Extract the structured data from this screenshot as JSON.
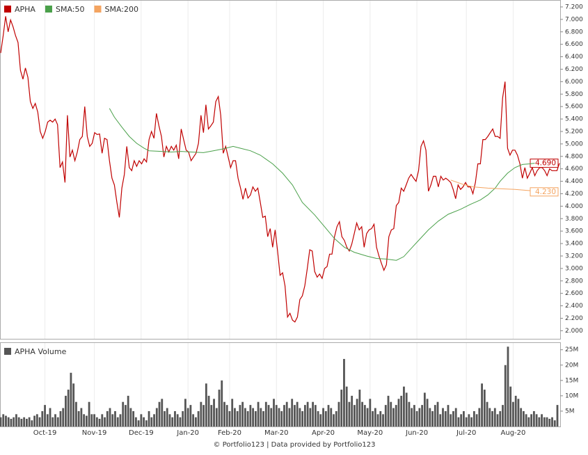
{
  "chart_data": [
    {
      "type": "line",
      "series": [
        {
          "name": "APHA",
          "color": "#c00000",
          "end_label": "4.690",
          "values": [
            6.46,
            6.74,
            7.05,
            6.8,
            6.99,
            6.88,
            6.74,
            6.63,
            6.18,
            6.04,
            6.22,
            6.07,
            5.68,
            5.57,
            5.65,
            5.51,
            5.2,
            5.09,
            5.2,
            5.35,
            5.38,
            5.35,
            5.4,
            5.31,
            4.62,
            4.71,
            4.38,
            5.46,
            4.79,
            4.9,
            4.73,
            4.87,
            5.07,
            5.12,
            5.6,
            5.12,
            4.96,
            5.01,
            5.18,
            5.15,
            5.16,
            4.85,
            5.09,
            5.07,
            4.73,
            4.45,
            4.34,
            4.06,
            3.82,
            4.29,
            4.51,
            4.96,
            4.62,
            4.57,
            4.73,
            4.64,
            4.73,
            4.68,
            4.76,
            4.71,
            5.07,
            5.2,
            5.09,
            5.49,
            5.29,
            5.12,
            4.79,
            4.96,
            4.87,
            4.96,
            4.9,
            4.98,
            4.76,
            5.24,
            5.07,
            4.9,
            4.87,
            4.73,
            4.79,
            4.85,
            5.01,
            5.46,
            5.18,
            5.63,
            5.24,
            5.29,
            5.35,
            5.68,
            5.76,
            5.46,
            4.85,
            4.96,
            4.79,
            4.62,
            4.73,
            4.73,
            4.45,
            4.29,
            4.11,
            4.29,
            4.13,
            4.18,
            4.31,
            4.24,
            4.29,
            4.06,
            3.82,
            3.84,
            3.51,
            3.64,
            3.34,
            3.62,
            3.28,
            2.89,
            2.93,
            2.72,
            2.22,
            2.28,
            2.17,
            2.14,
            2.22,
            2.5,
            2.56,
            2.72,
            3.0,
            3.3,
            3.28,
            2.95,
            2.86,
            2.91,
            2.84,
            3.0,
            3.03,
            3.23,
            3.23,
            3.51,
            3.67,
            3.75,
            3.51,
            3.45,
            3.34,
            3.28,
            3.39,
            3.56,
            3.73,
            3.62,
            3.67,
            3.34,
            3.56,
            3.62,
            3.64,
            3.71,
            3.34,
            3.2,
            3.08,
            2.97,
            3.06,
            3.51,
            3.62,
            3.64,
            4.01,
            4.06,
            4.29,
            4.24,
            4.34,
            4.45,
            4.51,
            4.45,
            4.4,
            4.57,
            4.96,
            5.05,
            4.9,
            4.24,
            4.34,
            4.48,
            4.48,
            4.31,
            4.48,
            4.42,
            4.45,
            4.42,
            4.38,
            4.27,
            4.12,
            4.34,
            4.27,
            4.31,
            4.38,
            4.31,
            4.31,
            4.2,
            4.38,
            4.68,
            4.68,
            5.07,
            5.07,
            5.12,
            5.18,
            5.24,
            5.12,
            5.12,
            5.09,
            5.74,
            6.0,
            4.93,
            4.82,
            4.9,
            4.9,
            4.82,
            4.68,
            4.45,
            4.62,
            4.45,
            4.53,
            4.62,
            4.49,
            4.57,
            4.62,
            4.62,
            4.57,
            4.49,
            4.6,
            4.57,
            4.57,
            4.57,
            4.69
          ]
        },
        {
          "name": "SMA:50",
          "color": "#4aa04a",
          "x": [
            44,
            46,
            49,
            52,
            55,
            58,
            60,
            65,
            69,
            73,
            77,
            82,
            86,
            90,
            94,
            97,
            101,
            105,
            110,
            114,
            118,
            122,
            127,
            131,
            135,
            139,
            143,
            148,
            152,
            156,
            160,
            163,
            166,
            169,
            173,
            177,
            181,
            186,
            190,
            194,
            197,
            200,
            202,
            205,
            208,
            211,
            214,
            216
          ],
          "values": [
            5.57,
            5.43,
            5.27,
            5.12,
            5.01,
            4.93,
            4.89,
            4.88,
            4.87,
            4.88,
            4.87,
            4.86,
            4.89,
            4.92,
            4.96,
            4.93,
            4.89,
            4.82,
            4.68,
            4.53,
            4.34,
            4.06,
            3.86,
            3.67,
            3.48,
            3.34,
            3.26,
            3.2,
            3.16,
            3.15,
            3.13,
            3.19,
            3.32,
            3.45,
            3.62,
            3.76,
            3.87,
            3.95,
            4.03,
            4.1,
            4.18,
            4.29,
            4.4,
            4.53,
            4.62,
            4.67,
            4.68,
            4.69
          ]
        },
        {
          "name": "SMA:200",
          "color": "#f4a460",
          "end_label": "4.230",
          "x": [
            182,
            187,
            191,
            197,
            202,
            208,
            214,
            216
          ],
          "values": [
            4.42,
            4.35,
            4.31,
            4.29,
            4.28,
            4.27,
            4.25,
            4.23
          ]
        }
      ],
      "xlim": [
        0,
        226
      ],
      "ylim": [
        1.87,
        7.3
      ],
      "yticks": [
        {
          "value": 2.0,
          "label": "2.000"
        },
        {
          "value": 2.2,
          "label": "2.200"
        },
        {
          "value": 2.4,
          "label": "2.400"
        },
        {
          "value": 2.6,
          "label": "2.600"
        },
        {
          "value": 2.8,
          "label": "2.800"
        },
        {
          "value": 3.0,
          "label": "3.000"
        },
        {
          "value": 3.2,
          "label": "3.200"
        },
        {
          "value": 3.4,
          "label": "3.400"
        },
        {
          "value": 3.6,
          "label": "3.600"
        },
        {
          "value": 3.8,
          "label": "3.800"
        },
        {
          "value": 4.0,
          "label": "4.000"
        },
        {
          "value": 4.2,
          "label": "4.200"
        },
        {
          "value": 4.4,
          "label": "4.400"
        },
        {
          "value": 4.6,
          "label": "4.600"
        },
        {
          "value": 4.8,
          "label": "4.800"
        },
        {
          "value": 5.0,
          "label": "5.000"
        },
        {
          "value": 5.2,
          "label": "5.200"
        },
        {
          "value": 5.4,
          "label": "5.400"
        },
        {
          "value": 5.6,
          "label": "5.600"
        },
        {
          "value": 5.8,
          "label": "5.800"
        },
        {
          "value": 6.0,
          "label": "6.000"
        },
        {
          "value": 6.2,
          "label": "6.200"
        },
        {
          "value": 6.4,
          "label": "6.400"
        },
        {
          "value": 6.6,
          "label": "6.600"
        },
        {
          "value": 6.8,
          "label": "6.800"
        },
        {
          "value": 7.0,
          "label": "7.000"
        },
        {
          "value": 7.2,
          "label": "7.200"
        }
      ],
      "legend": "top-left"
    },
    {
      "type": "bar",
      "series": [
        {
          "name": "APHA Volume",
          "color": "#555555",
          "values": [
            3,
            4,
            3.5,
            3,
            2.5,
            3,
            4,
            3,
            2.5,
            3,
            2.5,
            3,
            2,
            3.5,
            4,
            3,
            5,
            7,
            4,
            6,
            3,
            4,
            3,
            5,
            6,
            10,
            12,
            17.5,
            14,
            8,
            5,
            6,
            4,
            3.5,
            8,
            4,
            4,
            3,
            2.5,
            4,
            3,
            5,
            6,
            4,
            5,
            3,
            4,
            8,
            7,
            10,
            6,
            5,
            3,
            2,
            4,
            3,
            2,
            5,
            3,
            4,
            6,
            8,
            9,
            5,
            6,
            4,
            3,
            5,
            4,
            3,
            5,
            9,
            6,
            7,
            4,
            3,
            5,
            8,
            7,
            14,
            10,
            7,
            9,
            6,
            12,
            15,
            8,
            7,
            5,
            9,
            6,
            5,
            7,
            8,
            6,
            5,
            7,
            6,
            5,
            8,
            6,
            5,
            8,
            7,
            6,
            9,
            7,
            6,
            5,
            7,
            8,
            6,
            9,
            7,
            8,
            6,
            5,
            7,
            8,
            6,
            8,
            7,
            5,
            4,
            6,
            5,
            7,
            6,
            4,
            5,
            8,
            12,
            22,
            13,
            8,
            10,
            7,
            9,
            12,
            8,
            7,
            6,
            9,
            5,
            6,
            4,
            5,
            4,
            7,
            10,
            8,
            6,
            7,
            9,
            10,
            13,
            11,
            8,
            6,
            7,
            5,
            6,
            7,
            11,
            9,
            6,
            5,
            7,
            8,
            4,
            6,
            5,
            7,
            4,
            5,
            6,
            3,
            4,
            5,
            3,
            4,
            3,
            5,
            4,
            6,
            14,
            12,
            8,
            6,
            5,
            6,
            4,
            5,
            7,
            20,
            26,
            13,
            8,
            10,
            9,
            6,
            5,
            4,
            3,
            4,
            5,
            4,
            3,
            4,
            3,
            3,
            2.5,
            3,
            2,
            7
          ]
        }
      ],
      "xlim": [
        0,
        214
      ],
      "ylim": [
        0,
        27.2
      ],
      "xticks": [
        {
          "value": 17,
          "label": "Oct-19"
        },
        {
          "value": 36,
          "label": "Nov-19"
        },
        {
          "value": 54,
          "label": "Dec-19"
        },
        {
          "value": 72,
          "label": "Jan-20"
        },
        {
          "value": 88,
          "label": "Feb-20"
        },
        {
          "value": 106,
          "label": "Mar-20"
        },
        {
          "value": 124,
          "label": "Apr-20"
        },
        {
          "value": 142,
          "label": "May-20"
        },
        {
          "value": 160,
          "label": "Jun-20"
        },
        {
          "value": 179,
          "label": "Jul-20"
        },
        {
          "value": 197,
          "label": "Aug-20"
        }
      ],
      "yticks": [
        {
          "value": 5,
          "label": "5M"
        },
        {
          "value": 10,
          "label": "10M"
        },
        {
          "value": 15,
          "label": "15M"
        },
        {
          "value": 20,
          "label": "20M"
        },
        {
          "value": 25,
          "label": "25M"
        }
      ],
      "grid": "x",
      "legend": "top-left"
    }
  ],
  "footer": "© Portfolio123 | Data provided by Portfolio123"
}
